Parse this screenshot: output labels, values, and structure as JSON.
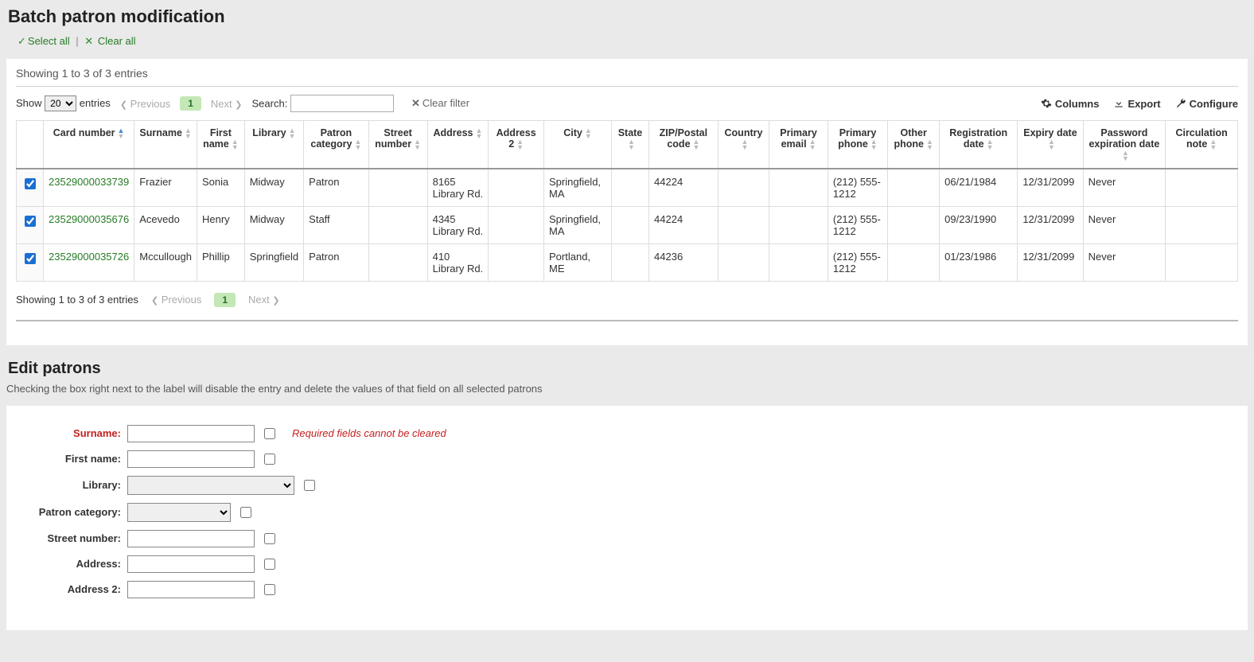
{
  "title": "Batch patron modification",
  "selectAll": "Select all",
  "clearAll": "Clear all",
  "entriesInfo": "Showing 1 to 3 of 3 entries",
  "showLabelPre": "Show",
  "showValue": "20",
  "showLabelPost": "entries",
  "prev": "Previous",
  "next": "Next",
  "pageNum": "1",
  "searchLabel": "Search:",
  "clearFilter": "Clear filter",
  "tools": {
    "columns": "Columns",
    "export": "Export",
    "configure": "Configure"
  },
  "columns": [
    "",
    "Card number",
    "Surname",
    "First name",
    "Library",
    "Patron category",
    "Street number",
    "Address",
    "Address 2",
    "City",
    "State",
    "ZIP/Postal code",
    "Country",
    "Primary email",
    "Primary phone",
    "Other phone",
    "Registration date",
    "Expiry date",
    "Password expiration date",
    "Circulation note"
  ],
  "rows": [
    {
      "checked": true,
      "card": "23529000033739",
      "surname": "Frazier",
      "first": "Sonia",
      "library": "Midway",
      "cat": "Patron",
      "street": "",
      "addr": "8165 Library Rd.",
      "addr2": "",
      "city": "Springfield, MA",
      "state": "",
      "zip": "44224",
      "country": "",
      "email": "",
      "phone": "(212) 555-1212",
      "ophone": "",
      "reg": "06/21/1984",
      "exp": "12/31/2099",
      "pwexp": "Never",
      "note": ""
    },
    {
      "checked": true,
      "card": "23529000035676",
      "surname": "Acevedo",
      "first": "Henry",
      "library": "Midway",
      "cat": "Staff",
      "street": "",
      "addr": "4345 Library Rd.",
      "addr2": "",
      "city": "Springfield, MA",
      "state": "",
      "zip": "44224",
      "country": "",
      "email": "",
      "phone": "(212) 555-1212",
      "ophone": "",
      "reg": "09/23/1990",
      "exp": "12/31/2099",
      "pwexp": "Never",
      "note": ""
    },
    {
      "checked": true,
      "card": "23529000035726",
      "surname": "Mccullough",
      "first": "Phillip",
      "library": "Springfield",
      "cat": "Patron",
      "street": "",
      "addr": "410 Library Rd.",
      "addr2": "",
      "city": "Portland, ME",
      "state": "",
      "zip": "44236",
      "country": "",
      "email": "",
      "phone": "(212) 555-1212",
      "ophone": "",
      "reg": "01/23/1986",
      "exp": "12/31/2099",
      "pwexp": "Never",
      "note": ""
    }
  ],
  "bottomInfo": "Showing 1 to 3 of 3 entries",
  "editHeading": "Edit patrons",
  "editSub": "Checking the box right next to the label will disable the entry and delete the values of that field on all selected patrons",
  "reqNote": "Required fields cannot be cleared",
  "form": {
    "surname": "Surname:",
    "first": "First name:",
    "library": "Library:",
    "cat": "Patron category:",
    "street": "Street number:",
    "addr": "Address:",
    "addr2": "Address 2:"
  }
}
